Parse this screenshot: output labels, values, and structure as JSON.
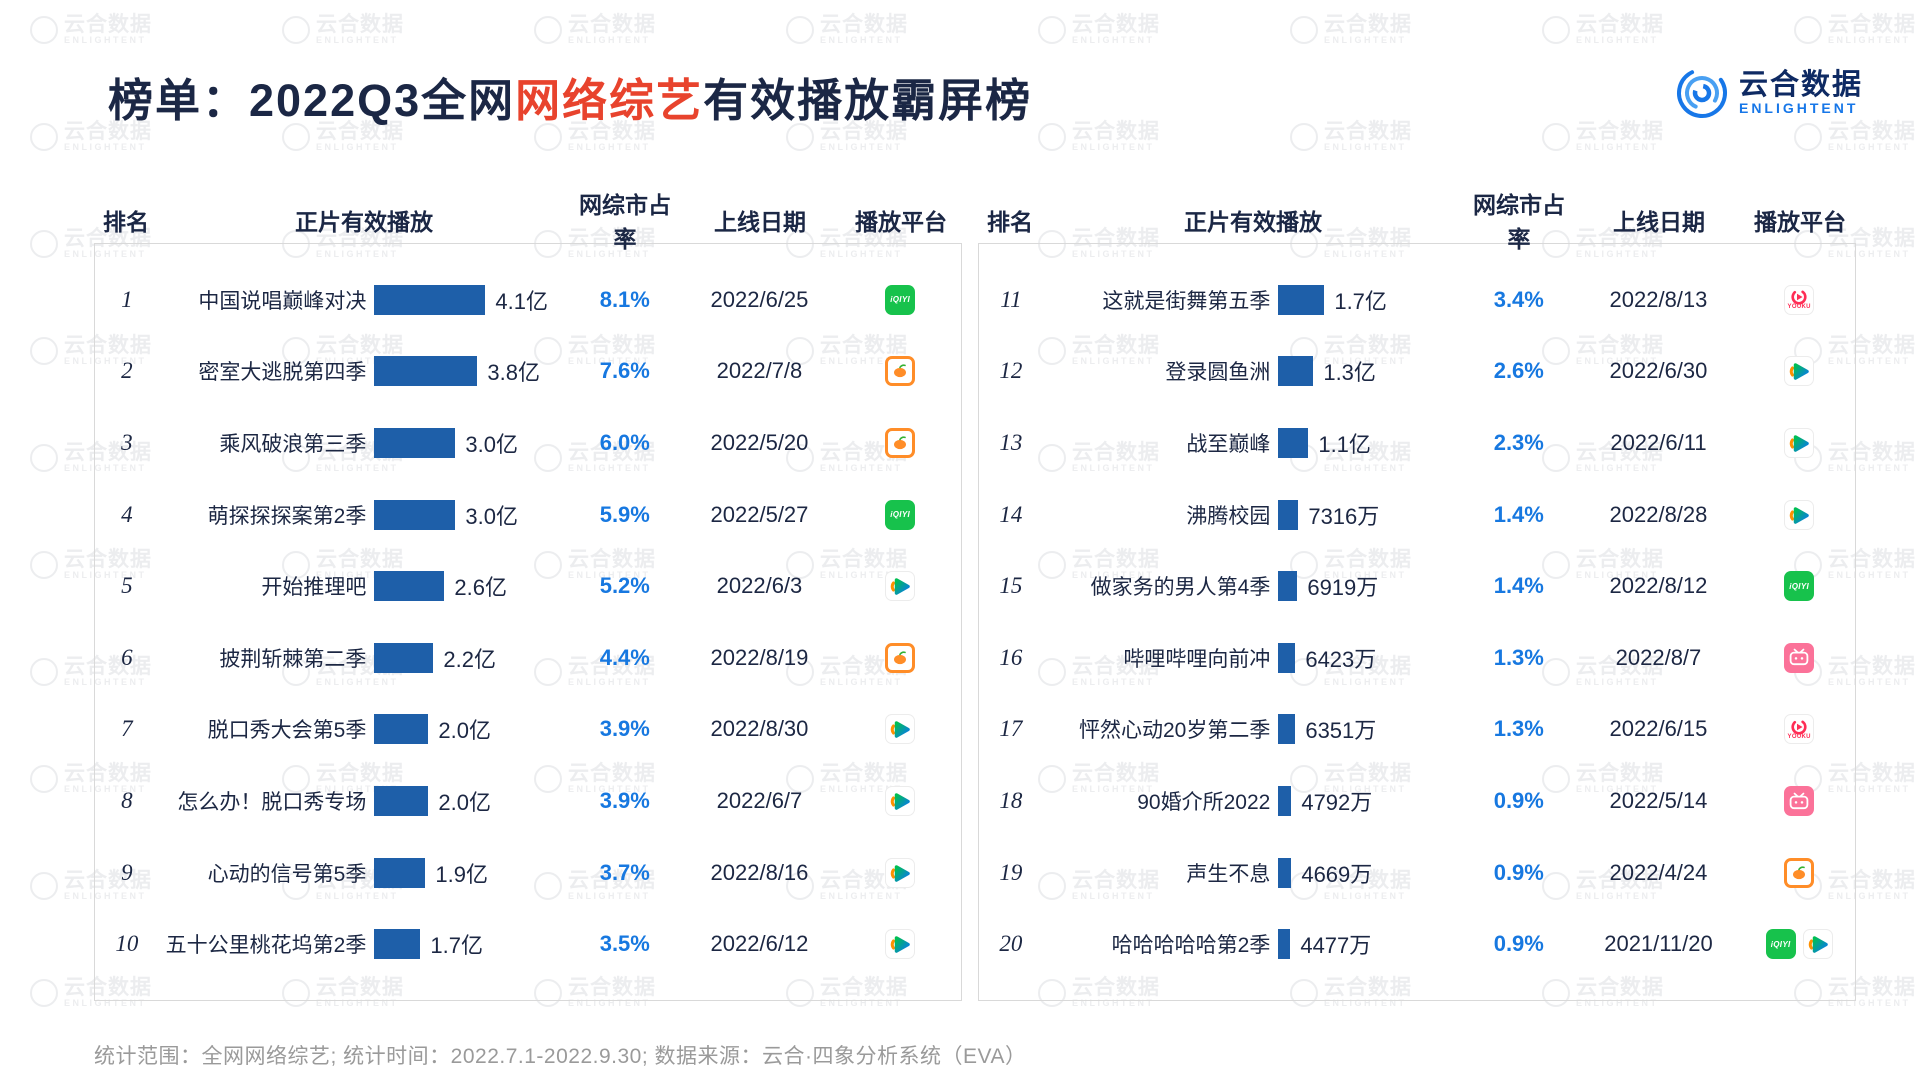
{
  "title": {
    "prefix": "榜单：2022Q3全网",
    "highlight": "网络综艺",
    "suffix": "有效播放霸屏榜"
  },
  "logo": {
    "brand": "云合数据",
    "brand_en": "ENLIGHTENT"
  },
  "watermark": {
    "text": "云合数据",
    "sub": "ENLIGHTENT"
  },
  "columns": [
    "排名",
    "正片有效播放",
    "网综市占率",
    "上线日期",
    "播放平台"
  ],
  "footer": "统计范围：全网网络综艺; 统计时间：2022.7.1-2022.9.30; 数据来源：云合·四象分析系统（EVA）",
  "colors": {
    "bar": "#1e5fa9",
    "share_text": "#1778e0",
    "title": "#1b2745",
    "title_highlight": "#e8432d",
    "logo_blue": "#1777e8"
  },
  "platform_meta": {
    "iqiyi": {
      "label": "iQIYI",
      "bg": "#17c24c"
    },
    "mgtv": {
      "border": "#ff8d28",
      "leaf": "#35b234"
    },
    "tencent": {
      "gradient": [
        "#00c050",
        "#0a78f0"
      ],
      "accent": "#ff9000"
    },
    "youku": {
      "label": "YOUKU",
      "color": "#ff2d55"
    },
    "bilibili": {
      "bg": "#fb7299"
    }
  },
  "panels": [
    {
      "rows": [
        {
          "rank": "1",
          "name": "中国说唱巅峰对决",
          "value": "4.1亿",
          "value_yi": 4.1,
          "share": "8.1%",
          "date": "2022/6/25",
          "platforms": [
            "iqiyi"
          ]
        },
        {
          "rank": "2",
          "name": "密室大逃脱第四季",
          "value": "3.8亿",
          "value_yi": 3.8,
          "share": "7.6%",
          "date": "2022/7/8",
          "platforms": [
            "mgtv"
          ]
        },
        {
          "rank": "3",
          "name": "乘风破浪第三季",
          "value": "3.0亿",
          "value_yi": 3.0,
          "share": "6.0%",
          "date": "2022/5/20",
          "platforms": [
            "mgtv"
          ]
        },
        {
          "rank": "4",
          "name": "萌探探探案第2季",
          "value": "3.0亿",
          "value_yi": 3.0,
          "share": "5.9%",
          "date": "2022/5/27",
          "platforms": [
            "iqiyi"
          ]
        },
        {
          "rank": "5",
          "name": "开始推理吧",
          "value": "2.6亿",
          "value_yi": 2.6,
          "share": "5.2%",
          "date": "2022/6/3",
          "platforms": [
            "tencent"
          ]
        },
        {
          "rank": "6",
          "name": "披荆斩棘第二季",
          "value": "2.2亿",
          "value_yi": 2.2,
          "share": "4.4%",
          "date": "2022/8/19",
          "platforms": [
            "mgtv"
          ]
        },
        {
          "rank": "7",
          "name": "脱口秀大会第5季",
          "value": "2.0亿",
          "value_yi": 2.0,
          "share": "3.9%",
          "date": "2022/8/30",
          "platforms": [
            "tencent"
          ]
        },
        {
          "rank": "8",
          "name": "怎么办！脱口秀专场",
          "value": "2.0亿",
          "value_yi": 2.0,
          "share": "3.9%",
          "date": "2022/6/7",
          "platforms": [
            "tencent"
          ]
        },
        {
          "rank": "9",
          "name": "心动的信号第5季",
          "value": "1.9亿",
          "value_yi": 1.9,
          "share": "3.7%",
          "date": "2022/8/16",
          "platforms": [
            "tencent"
          ]
        },
        {
          "rank": "10",
          "name": "五十公里桃花坞第2季",
          "value": "1.7亿",
          "value_yi": 1.7,
          "share": "3.5%",
          "date": "2022/6/12",
          "platforms": [
            "tencent"
          ]
        }
      ]
    },
    {
      "rows": [
        {
          "rank": "11",
          "name": "这就是街舞第五季",
          "value": "1.7亿",
          "value_yi": 1.7,
          "share": "3.4%",
          "date": "2022/8/13",
          "platforms": [
            "youku"
          ]
        },
        {
          "rank": "12",
          "name": "登录圆鱼洲",
          "value": "1.3亿",
          "value_yi": 1.3,
          "share": "2.6%",
          "date": "2022/6/30",
          "platforms": [
            "tencent"
          ]
        },
        {
          "rank": "13",
          "name": "战至巅峰",
          "value": "1.1亿",
          "value_yi": 1.1,
          "share": "2.3%",
          "date": "2022/6/11",
          "platforms": [
            "tencent"
          ]
        },
        {
          "rank": "14",
          "name": "沸腾校园",
          "value": "7316万",
          "value_yi": 0.7316,
          "share": "1.4%",
          "date": "2022/8/28",
          "platforms": [
            "tencent"
          ]
        },
        {
          "rank": "15",
          "name": "做家务的男人第4季",
          "value": "6919万",
          "value_yi": 0.6919,
          "share": "1.4%",
          "date": "2022/8/12",
          "platforms": [
            "iqiyi"
          ]
        },
        {
          "rank": "16",
          "name": "哔哩哔哩向前冲",
          "value": "6423万",
          "value_yi": 0.6423,
          "share": "1.3%",
          "date": "2022/8/7",
          "platforms": [
            "bilibili"
          ]
        },
        {
          "rank": "17",
          "name": "怦然心动20岁第二季",
          "value": "6351万",
          "value_yi": 0.6351,
          "share": "1.3%",
          "date": "2022/6/15",
          "platforms": [
            "youku"
          ]
        },
        {
          "rank": "18",
          "name": "90婚介所2022",
          "value": "4792万",
          "value_yi": 0.4792,
          "share": "0.9%",
          "date": "2022/5/14",
          "platforms": [
            "bilibili"
          ]
        },
        {
          "rank": "19",
          "name": "声生不息",
          "value": "4669万",
          "value_yi": 0.4669,
          "share": "0.9%",
          "date": "2022/4/24",
          "platforms": [
            "mgtv"
          ]
        },
        {
          "rank": "20",
          "name": "哈哈哈哈哈第2季",
          "value": "4477万",
          "value_yi": 0.4477,
          "share": "0.9%",
          "date": "2021/11/20",
          "platforms": [
            "iqiyi",
            "tencent"
          ]
        }
      ]
    }
  ],
  "chart_data": {
    "type": "bar",
    "title": "榜单：2022Q3全网网络综艺有效播放霸屏榜",
    "categories": [
      "中国说唱巅峰对决",
      "密室大逃脱第四季",
      "乘风破浪第三季",
      "萌探探探案第2季",
      "开始推理吧",
      "披荆斩棘第二季",
      "脱口秀大会第5季",
      "怎么办！脱口秀专场",
      "心动的信号第5季",
      "五十公里桃花坞第2季",
      "这就是街舞第五季",
      "登录圆鱼洲",
      "战至巅峰",
      "沸腾校园",
      "做家务的男人第4季",
      "哔哩哔哩向前冲",
      "怦然心动20岁第二季",
      "90婚介所2022",
      "声生不息",
      "哈哈哈哈哈第2季"
    ],
    "series": [
      {
        "name": "正片有效播放(亿)",
        "values": [
          4.1,
          3.8,
          3.0,
          3.0,
          2.6,
          2.2,
          2.0,
          2.0,
          1.9,
          1.7,
          1.7,
          1.3,
          1.1,
          0.7316,
          0.6919,
          0.6423,
          0.6351,
          0.4792,
          0.4669,
          0.4477
        ]
      },
      {
        "name": "网综市占率(%)",
        "values": [
          8.1,
          7.6,
          6.0,
          5.9,
          5.2,
          4.4,
          3.9,
          3.9,
          3.7,
          3.5,
          3.4,
          2.6,
          2.3,
          1.4,
          1.4,
          1.3,
          1.3,
          0.9,
          0.9,
          0.9
        ]
      }
    ],
    "value_labels": [
      "4.1亿",
      "3.8亿",
      "3.0亿",
      "3.0亿",
      "2.6亿",
      "2.2亿",
      "2.0亿",
      "2.0亿",
      "1.9亿",
      "1.7亿",
      "1.7亿",
      "1.3亿",
      "1.1亿",
      "7316万",
      "6919万",
      "6423万",
      "6351万",
      "4792万",
      "4669万",
      "4477万"
    ],
    "launch_dates": [
      "2022/6/25",
      "2022/7/8",
      "2022/5/20",
      "2022/5/27",
      "2022/6/3",
      "2022/8/19",
      "2022/8/30",
      "2022/6/7",
      "2022/8/16",
      "2022/6/12",
      "2022/8/13",
      "2022/6/30",
      "2022/6/11",
      "2022/8/28",
      "2022/8/12",
      "2022/8/7",
      "2022/6/15",
      "2022/5/14",
      "2022/4/24",
      "2021/11/20"
    ],
    "platforms": [
      [
        "iqiyi"
      ],
      [
        "mgtv"
      ],
      [
        "mgtv"
      ],
      [
        "iqiyi"
      ],
      [
        "tencent"
      ],
      [
        "mgtv"
      ],
      [
        "tencent"
      ],
      [
        "tencent"
      ],
      [
        "tencent"
      ],
      [
        "tencent"
      ],
      [
        "youku"
      ],
      [
        "tencent"
      ],
      [
        "tencent"
      ],
      [
        "tencent"
      ],
      [
        "iqiyi"
      ],
      [
        "bilibili"
      ],
      [
        "youku"
      ],
      [
        "bilibili"
      ],
      [
        "mgtv"
      ],
      [
        "iqiyi",
        "tencent"
      ]
    ],
    "xlabel": "",
    "ylabel": "正片有效播放",
    "value_range": [
      0,
      4.1
    ],
    "value_unit": "亿",
    "grid": false,
    "legend_position": "none"
  }
}
